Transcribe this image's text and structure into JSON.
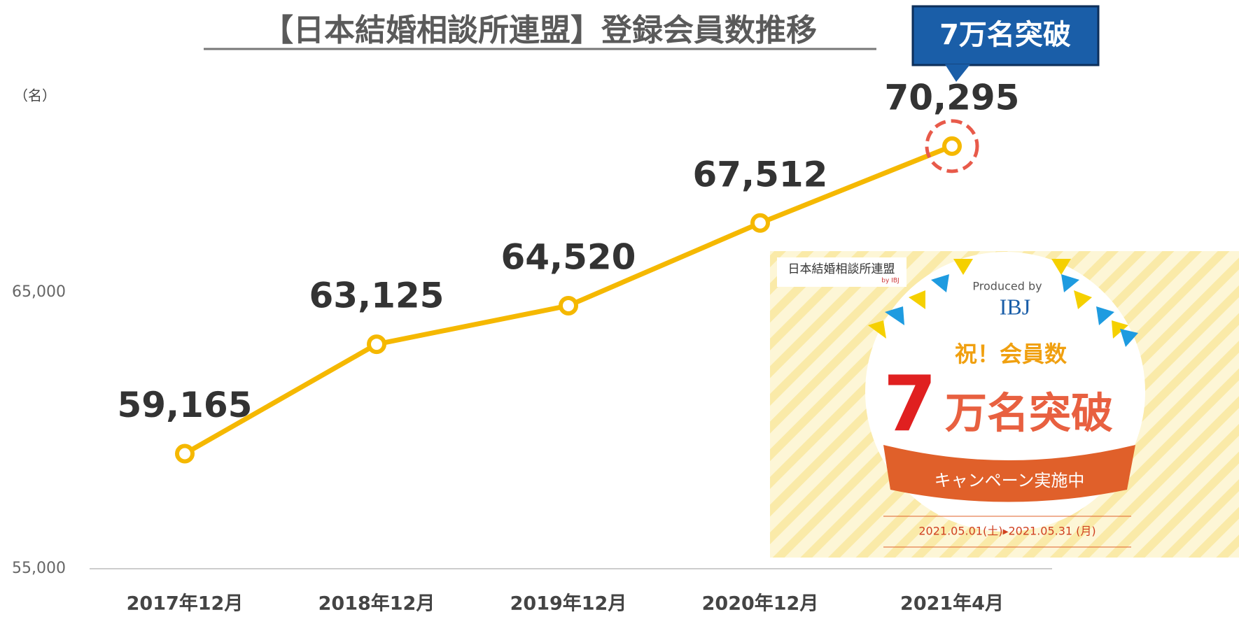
{
  "chart_data": {
    "type": "line",
    "title": "【日本結婚相談所連盟】登録会員数推移",
    "callout": "7万名突破",
    "y_unit": "（名）",
    "categories": [
      "2017年12月",
      "2018年12月",
      "2019年12月",
      "2020年12月",
      "2021年4月"
    ],
    "values": [
      59165,
      63125,
      64520,
      67512,
      70295
    ],
    "value_labels": [
      "59,165",
      "63,125",
      "64,520",
      "67,512",
      "70,295"
    ],
    "color": "#f5b800",
    "highlight_color": "#e85a4a",
    "ylim": [
      55000,
      73000
    ],
    "yticks": [
      {
        "value": 55000,
        "label": "55,000"
      },
      {
        "value": 65000,
        "label": "65,000"
      }
    ]
  },
  "banner": {
    "org": "日本結婚相談所連盟",
    "org_by": "by IBJ",
    "produced_by": "Produced by",
    "brand": "IBJ",
    "headline": "祝！会員数",
    "big_number": "7",
    "big_text": "万名突破",
    "ribbon": "キャンペーン実施中",
    "period": "2021.05.01(土)▸2021.05.31 (月)"
  }
}
